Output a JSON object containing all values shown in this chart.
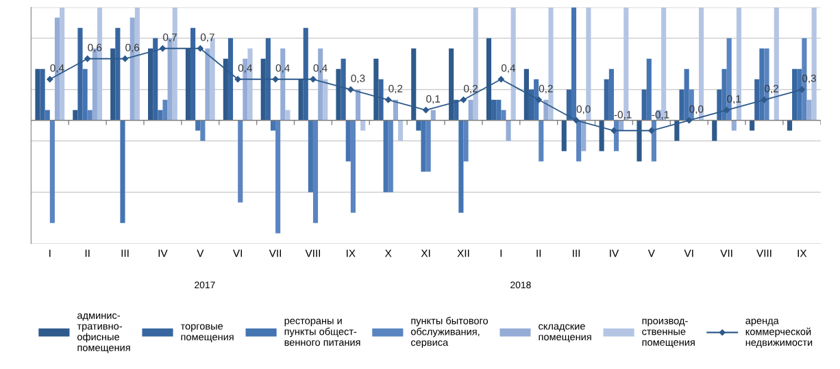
{
  "chart_data": {
    "type": "bar",
    "categories": [
      "I",
      "II",
      "III",
      "IV",
      "V",
      "VI",
      "VII",
      "VIII",
      "IX",
      "X",
      "XI",
      "XII",
      "I",
      "II",
      "III",
      "IV",
      "V",
      "VI",
      "VII",
      "VIII",
      "IX"
    ],
    "series": [
      {
        "name": "админис-\nтративно-\nофисные\nпомещения",
        "color": "#2e5a8c",
        "values": [
          0.5,
          0.1,
          0.7,
          0.7,
          0.7,
          0.6,
          0.6,
          0.4,
          0.5,
          0.6,
          0.7,
          0.7,
          0.8,
          0.5,
          -0.3,
          -0.3,
          -0.4,
          -0.2,
          -0.2,
          -0.1,
          -0.1
        ]
      },
      {
        "name": "торговые\nпомещения",
        "color": "#3766a0",
        "values": [
          0.5,
          0.9,
          0.9,
          0.8,
          0.9,
          0.8,
          0.8,
          0.9,
          0.6,
          0.4,
          -0.1,
          0.2,
          0.2,
          0.3,
          0.3,
          0.4,
          0.3,
          0.3,
          0.3,
          0.4,
          0.5
        ]
      },
      {
        "name": "рестораны и\nпункты общест-\nвенного питания",
        "color": "#4474b2",
        "values": [
          0.1,
          0.5,
          -1.0,
          0.1,
          -0.1,
          0,
          -0.1,
          -0.7,
          -0.4,
          -0.7,
          -0.5,
          -0.9,
          0.2,
          0.4,
          1.1,
          0.5,
          0.6,
          0.5,
          0.5,
          0.7,
          0.5
        ]
      },
      {
        "name": "пункты бытового\nобслуживания,\nсервиса",
        "color": "#5a85c0",
        "values": [
          -1.0,
          0.1,
          0,
          0.2,
          -0.2,
          -0.8,
          -1.1,
          -1.0,
          -0.9,
          -0.7,
          -0.5,
          -0.4,
          0.1,
          -0.4,
          -0.4,
          -0.3,
          -0.4,
          0.3,
          0.8,
          0.7,
          0.8
        ]
      },
      {
        "name": "складские\nпомещения",
        "color": "#95add6",
        "values": [
          1.0,
          0.7,
          1.0,
          0.8,
          0.7,
          0.6,
          0.7,
          0.7,
          0.3,
          0.2,
          0.1,
          0.2,
          -0.2,
          0.2,
          -0.3,
          -0.1,
          0.1,
          0,
          -0.1,
          0,
          0.2
        ]
      },
      {
        "name": "производ-\nственные\nпомещения",
        "color": "#b4c5e4",
        "values": [
          1.1,
          1.1,
          1.1,
          1.1,
          0.8,
          0.7,
          0.1,
          0.4,
          -0.1,
          -0.2,
          0,
          1.1,
          1.1,
          1.1,
          1.1,
          1.1,
          1.1,
          1.1,
          1.1,
          1.1,
          1.1
        ]
      },
      {
        "name": "аренда\nкоммерческой\nнедвижимости",
        "type": "line",
        "color": "#2e5a8c",
        "marker": "diamond",
        "values": [
          0.4,
          0.6,
          0.6,
          0.7,
          0.7,
          0.4,
          0.4,
          0.4,
          0.3,
          0.2,
          0.1,
          0.2,
          0.4,
          0.2,
          0.0,
          -0.1,
          -0.1,
          0.0,
          0.1,
          0.2,
          0.3
        ],
        "value_labels": [
          "0,4",
          "0,6",
          "0,6",
          "0,7",
          "0,7",
          "0,4",
          "0,4",
          "0,4",
          "0,3",
          "0,2",
          "0,1",
          "0,2",
          "0,4",
          "0,2",
          "0,0",
          "-0,1",
          "-0,1",
          "0,0",
          "0,1",
          "0,2",
          "0,3"
        ]
      }
    ],
    "ylim": [
      -1.2,
      1.1
    ],
    "yticks": [
      {
        "value": -1.2,
        "label": null
      },
      {
        "value": -0.7,
        "label": null
      },
      {
        "value": -0.2,
        "label": null
      },
      {
        "value": 0.3,
        "label": null
      },
      {
        "value": 0.8,
        "label": null
      },
      {
        "value": 1.1,
        "label": null
      }
    ],
    "grid": "y",
    "legend": "bottom",
    "annotations": [
      "2017",
      "2018"
    ]
  }
}
